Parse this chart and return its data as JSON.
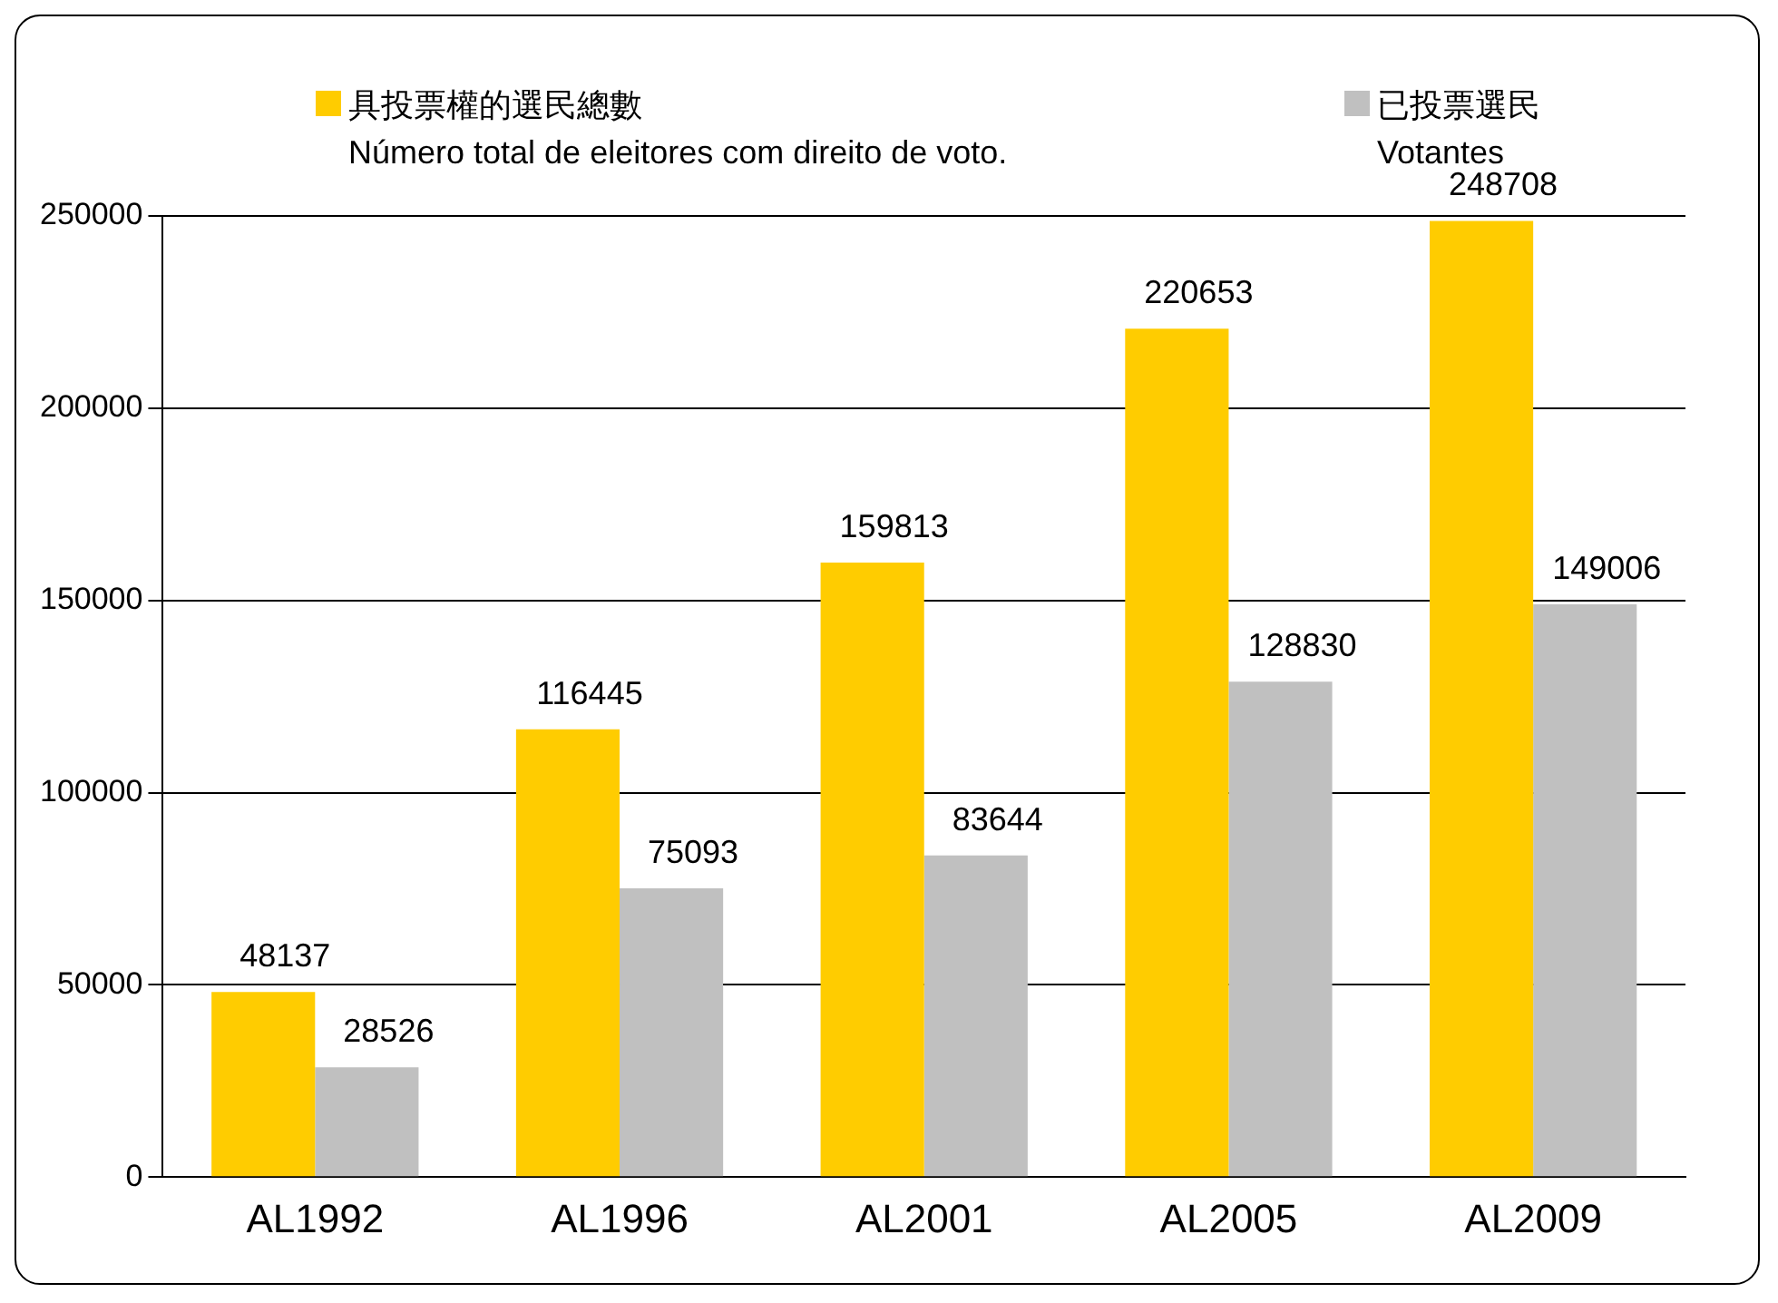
{
  "chart_data": {
    "type": "bar",
    "categories": [
      "AL1992",
      "AL1996",
      "AL2001",
      "AL2005",
      "AL2009"
    ],
    "series": [
      {
        "name": "具投票權的選民總數\nNúmero total de eleitores com direito de voto.",
        "color": "#ffcc00",
        "values": [
          48137,
          116445,
          159813,
          220653,
          248708
        ]
      },
      {
        "name": "已投票選民\nVotantes",
        "color": "#c0c0c0",
        "values": [
          28526,
          75093,
          83644,
          128830,
          149006
        ]
      }
    ],
    "ylim": [
      0,
      250000
    ],
    "yticks": [
      0,
      50000,
      100000,
      150000,
      200000,
      250000
    ],
    "grid": "y",
    "legend": "top",
    "data_labels": true
  }
}
